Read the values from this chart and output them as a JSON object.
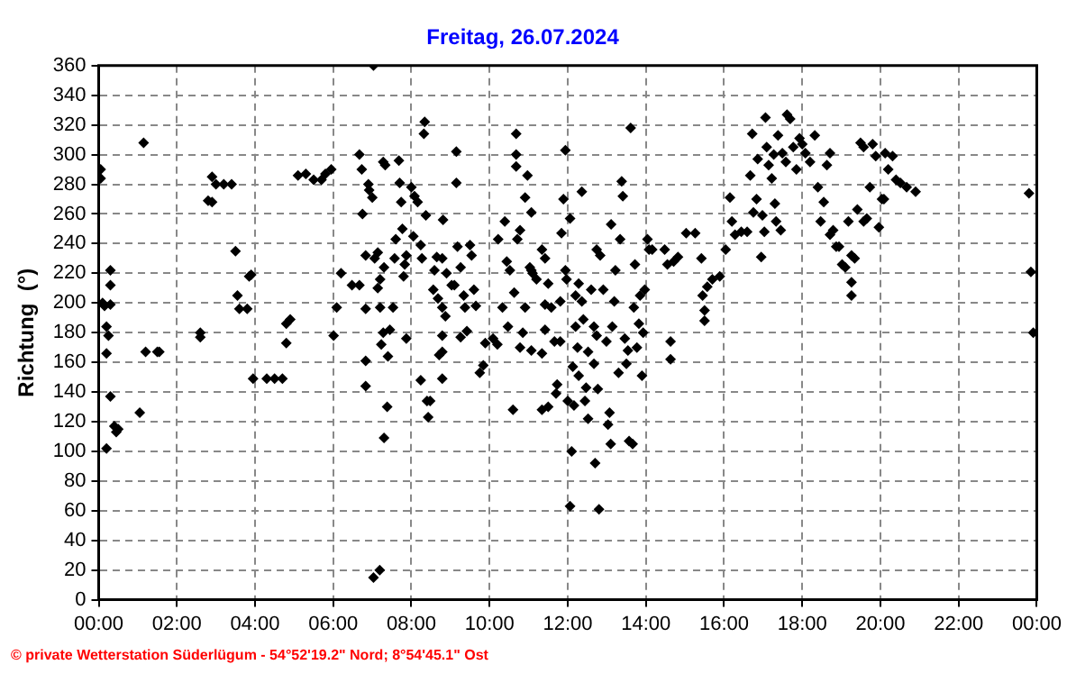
{
  "chart_data": {
    "type": "scatter",
    "title": "Freitag, 26.07.2024",
    "ylabel": "Richtung  (°)",
    "annotations": [
      "© private Wetterstation Süderlügum - 54°52'19.2\" Nord; 8°54'45.1\" Ost"
    ],
    "xlim": [
      0,
      24
    ],
    "xticks": [
      {
        "value": 0,
        "label": "00:00"
      },
      {
        "value": 2,
        "label": "02:00"
      },
      {
        "value": 4,
        "label": "04:00"
      },
      {
        "value": 6,
        "label": "06:00"
      },
      {
        "value": 8,
        "label": "08:00"
      },
      {
        "value": 10,
        "label": "10:00"
      },
      {
        "value": 12,
        "label": "12:00"
      },
      {
        "value": 14,
        "label": "14:00"
      },
      {
        "value": 16,
        "label": "16:00"
      },
      {
        "value": 18,
        "label": "18:00"
      },
      {
        "value": 20,
        "label": "20:00"
      },
      {
        "value": 22,
        "label": "22:00"
      },
      {
        "value": 24,
        "label": "00:00"
      }
    ],
    "ylim": [
      0,
      360
    ],
    "yticks": [
      0,
      20,
      40,
      60,
      80,
      100,
      120,
      140,
      160,
      180,
      200,
      220,
      240,
      260,
      280,
      300,
      320,
      340,
      360
    ],
    "grid": true,
    "marker": "diamond",
    "legend": false,
    "series": [
      {
        "color": "#000000",
        "x": [
          0.05,
          0.05,
          0.1,
          0.15,
          0.2,
          0.25,
          0.2,
          0.3,
          0.3,
          0.3,
          0.2,
          0.3,
          0.4,
          0.45,
          0.5,
          1.05,
          1.15,
          1.2,
          1.5,
          1.55,
          2.6,
          2.6,
          2.8,
          2.9,
          2.9,
          3.0,
          3.2,
          3.4,
          3.5,
          3.55,
          3.6,
          3.8,
          3.85,
          3.9,
          3.95,
          4.3,
          4.5,
          4.7,
          4.8,
          4.8,
          4.9,
          5.1,
          5.3,
          5.5,
          5.7,
          5.8,
          5.95,
          6.01,
          6.09,
          6.2,
          6.48,
          6.67,
          6.67,
          6.73,
          6.75,
          6.83,
          6.83,
          6.83,
          6.83,
          6.9,
          6.92,
          7.0,
          7.03,
          7.06,
          7.03,
          7.19,
          7.14,
          7.14,
          7.2,
          7.2,
          7.23,
          7.28,
          7.28,
          7.33,
          7.3,
          7.3,
          7.38,
          7.4,
          7.45,
          7.53,
          7.57,
          7.6,
          7.68,
          7.7,
          7.74,
          7.77,
          7.8,
          7.83,
          7.87,
          7.87,
          8.0,
          8.05,
          8.08,
          8.16,
          8.24,
          8.24,
          8.27,
          8.34,
          8.32,
          8.37,
          8.4,
          8.43,
          8.48,
          8.56,
          8.59,
          8.65,
          8.68,
          8.71,
          8.79,
          8.79,
          8.79,
          8.79,
          8.79,
          8.81,
          8.87,
          8.9,
          9.03,
          9.1,
          9.15,
          9.15,
          9.18,
          9.26,
          9.26,
          9.34,
          9.37,
          9.42,
          9.5,
          9.54,
          9.6,
          9.65,
          9.75,
          9.84,
          9.89,
          10.09,
          10.2,
          10.22,
          10.33,
          10.39,
          10.44,
          10.47,
          10.52,
          10.6,
          10.63,
          10.68,
          10.68,
          10.68,
          10.71,
          10.78,
          10.78,
          10.85,
          10.91,
          10.97,
          10.91,
          11.07,
          11.07,
          11.07,
          11.03,
          11.1,
          11.2,
          11.34,
          11.42,
          11.5,
          11.42,
          11.42,
          11.34,
          11.34,
          11.5,
          11.58,
          11.66,
          11.7,
          11.73,
          11.81,
          11.81,
          11.84,
          11.89,
          11.94,
          11.94,
          11.97,
          12.0,
          12.06,
          12.06,
          12.1,
          12.13,
          12.16,
          12.2,
          12.2,
          12.25,
          12.28,
          12.28,
          12.36,
          12.36,
          12.4,
          12.44,
          12.47,
          12.52,
          12.52,
          12.6,
          12.67,
          12.67,
          12.7,
          12.74,
          12.74,
          12.77,
          12.8,
          12.83,
          12.91,
          12.99,
          13.03,
          13.07,
          13.1,
          13.11,
          13.14,
          13.19,
          13.22,
          13.3,
          13.34,
          13.38,
          13.41,
          13.46,
          13.5,
          13.54,
          13.57,
          13.61,
          13.66,
          13.69,
          13.72,
          13.77,
          13.82,
          13.85,
          13.9,
          13.93,
          13.97,
          14.04,
          14.08,
          14.16,
          14.48,
          14.55,
          14.63,
          14.63,
          14.71,
          14.82,
          15.03,
          15.26,
          15.42,
          15.45,
          15.5,
          15.5,
          15.57,
          15.7,
          15.89,
          16.04,
          16.15,
          16.2,
          16.28,
          16.44,
          16.59,
          16.67,
          16.72,
          16.75,
          16.83,
          16.86,
          16.95,
          16.98,
          17.03,
          17.06,
          17.09,
          17.14,
          17.22,
          17.27,
          17.3,
          17.33,
          17.38,
          17.45,
          17.49,
          17.58,
          17.61,
          17.69,
          17.77,
          17.85,
          17.93,
          18.0,
          18.08,
          18.2,
          18.32,
          18.4,
          18.47,
          18.55,
          18.63,
          18.71,
          18.71,
          18.79,
          18.87,
          18.94,
          19.02,
          19.1,
          19.18,
          19.26,
          19.26,
          19.26,
          19.34,
          19.41,
          19.49,
          19.57,
          19.57,
          19.65,
          19.73,
          19.8,
          19.88,
          19.96,
          20.04,
          20.09,
          20.12,
          20.2,
          20.31,
          20.4,
          20.51,
          20.67,
          20.9,
          23.8,
          23.85,
          23.91
        ],
        "values": [
          290,
          284,
          200,
          198,
          184,
          178,
          166,
          212,
          222,
          199,
          102,
          137,
          117,
          113,
          115,
          126,
          308,
          167,
          167,
          167,
          180,
          177,
          269,
          268,
          285,
          280,
          280,
          280,
          235,
          205,
          196,
          196,
          218,
          219,
          149,
          149,
          149,
          149,
          173,
          186,
          189,
          286,
          287,
          283,
          283,
          287,
          290,
          178,
          197,
          220,
          212,
          212,
          300,
          290,
          260,
          232,
          196,
          161,
          144,
          280,
          276,
          271,
          360,
          230,
          15,
          20,
          234,
          210,
          216,
          197,
          172,
          180,
          295,
          293,
          224,
          109,
          130,
          164,
          182,
          197,
          230,
          243,
          296,
          281,
          268,
          250,
          218,
          226,
          232,
          176,
          278,
          245,
          272,
          268,
          239,
          148,
          230,
          322,
          314,
          259,
          134,
          123,
          134,
          209,
          222,
          231,
          203,
          165,
          167,
          149,
          178,
          197,
          230,
          256,
          191,
          220,
          212,
          212,
          302,
          281,
          238,
          224,
          177,
          205,
          197,
          181,
          239,
          232,
          209,
          198,
          153,
          158,
          173,
          176,
          172,
          243,
          197,
          255,
          228,
          184,
          222,
          128,
          207,
          314,
          300,
          292,
          243,
          249,
          170,
          180,
          271,
          286,
          197,
          168,
          261,
          222,
          224,
          220,
          216,
          236,
          230,
          213,
          199,
          182,
          166,
          128,
          130,
          197,
          174,
          139,
          145,
          174,
          201,
          247,
          270,
          303,
          222,
          216,
          134,
          257,
          63,
          100,
          157,
          131,
          205,
          184,
          170,
          151,
          213,
          275,
          201,
          189,
          134,
          143,
          122,
          167,
          209,
          159,
          184,
          92,
          178,
          236,
          142,
          61,
          232,
          209,
          174,
          118,
          126,
          105,
          253,
          184,
          201,
          222,
          153,
          243,
          282,
          272,
          176,
          159,
          168,
          107,
          318,
          105,
          197,
          226,
          170,
          186,
          205,
          151,
          180,
          209,
          243,
          236,
          236,
          236,
          226,
          174,
          162,
          228,
          231,
          247,
          247,
          230,
          205,
          195,
          188,
          211,
          216,
          218,
          236,
          271,
          255,
          246,
          248,
          248,
          286,
          314,
          261,
          270,
          297,
          231,
          259,
          248,
          325,
          305,
          293,
          284,
          300,
          267,
          255,
          313,
          249,
          301,
          295,
          327,
          324,
          305,
          290,
          311,
          307,
          301,
          295,
          313,
          278,
          255,
          268,
          293,
          301,
          246,
          249,
          238,
          238,
          226,
          224,
          255,
          232,
          214,
          205,
          230,
          263,
          308,
          255,
          305,
          257,
          278,
          307,
          299,
          251,
          270,
          270,
          301,
          290,
          299,
          283,
          281,
          278,
          275,
          274,
          221,
          180
        ]
      }
    ]
  }
}
